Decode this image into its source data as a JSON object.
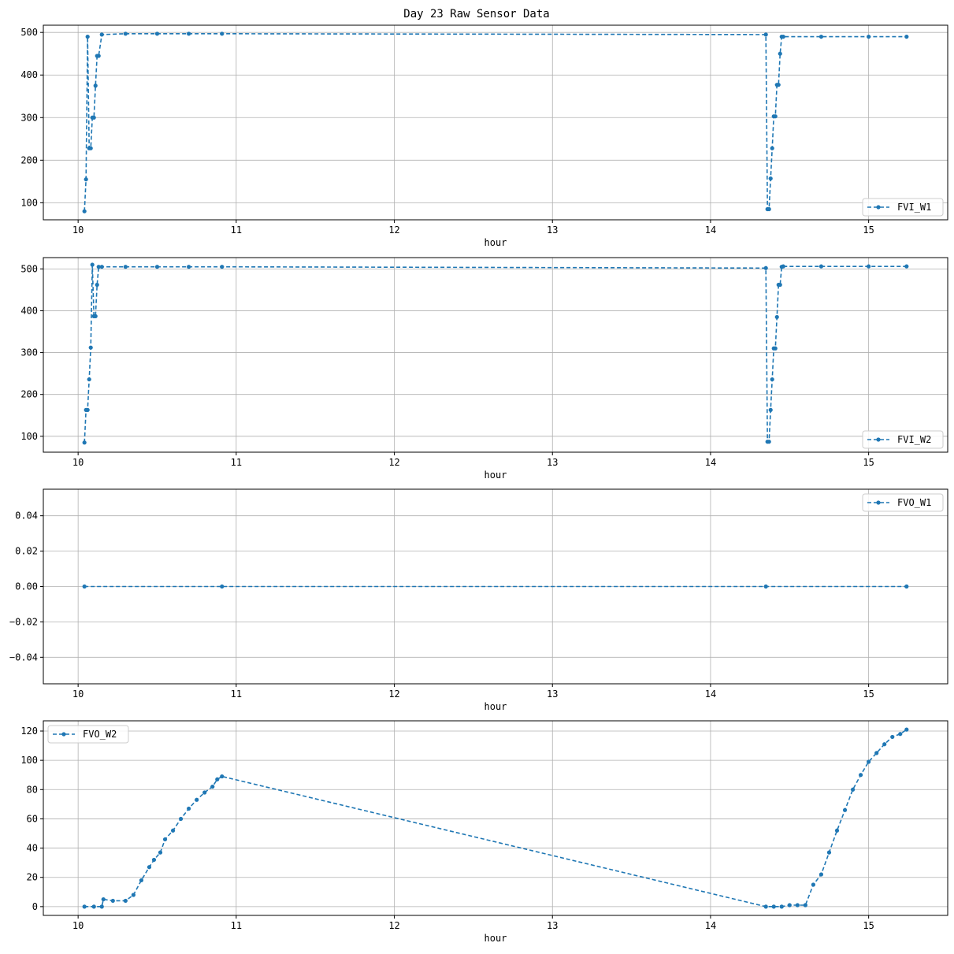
{
  "figure": {
    "title": "Day 23 Raw Sensor Data",
    "series_color": "#1f77b4",
    "grid_color": "#b0b0b0"
  },
  "chart_data": [
    {
      "type": "line",
      "series": [
        {
          "name": "FVI_W1",
          "x": [
            10.04,
            10.05,
            10.06,
            10.07,
            10.08,
            10.09,
            10.1,
            10.11,
            10.12,
            10.13,
            10.15,
            10.3,
            10.5,
            10.7,
            10.91,
            14.35,
            14.36,
            14.37,
            14.38,
            14.39,
            14.4,
            14.41,
            14.42,
            14.43,
            14.44,
            14.45,
            14.46,
            14.7,
            15.0,
            15.24
          ],
          "y": [
            80,
            155,
            490,
            228,
            228,
            300,
            300,
            375,
            445,
            445,
            495,
            497,
            497,
            497,
            497,
            495,
            85,
            85,
            157,
            228,
            303,
            303,
            377,
            377,
            450,
            490,
            490,
            490,
            490,
            490
          ]
        }
      ],
      "xlabel": "hour",
      "ylabel": "",
      "xlim": [
        9.78,
        15.5
      ],
      "ylim": [
        60,
        517
      ],
      "xticks": [
        10,
        11,
        12,
        13,
        14,
        15
      ],
      "yticks": [
        100,
        200,
        300,
        400,
        500
      ],
      "legend": "lower right",
      "grid": true
    },
    {
      "type": "line",
      "series": [
        {
          "name": "FVI_W2",
          "x": [
            10.04,
            10.05,
            10.06,
            10.07,
            10.08,
            10.09,
            10.1,
            10.11,
            10.12,
            10.13,
            10.15,
            10.3,
            10.5,
            10.7,
            10.91,
            14.35,
            14.36,
            14.37,
            14.38,
            14.39,
            14.4,
            14.41,
            14.42,
            14.43,
            14.44,
            14.45,
            14.46,
            14.7,
            15.0,
            15.24
          ],
          "y": [
            85,
            163,
            163,
            236,
            312,
            510,
            387,
            387,
            462,
            505,
            505,
            505,
            505,
            505,
            505,
            502,
            87,
            87,
            163,
            236,
            310,
            310,
            385,
            462,
            462,
            505,
            506,
            506,
            506,
            506
          ]
        }
      ],
      "xlabel": "hour",
      "ylabel": "",
      "xlim": [
        9.78,
        15.5
      ],
      "ylim": [
        62,
        527
      ],
      "xticks": [
        10,
        11,
        12,
        13,
        14,
        15
      ],
      "yticks": [
        100,
        200,
        300,
        400,
        500
      ],
      "legend": "lower right",
      "grid": true
    },
    {
      "type": "line",
      "series": [
        {
          "name": "FVO_W1",
          "x": [
            10.04,
            10.91,
            14.35,
            15.24
          ],
          "y": [
            0,
            0,
            0,
            0
          ]
        }
      ],
      "xlabel": "hour",
      "ylabel": "",
      "xlim": [
        9.78,
        15.5
      ],
      "ylim": [
        -0.055,
        0.055
      ],
      "xticks": [
        10,
        11,
        12,
        13,
        14,
        15
      ],
      "yticks": [
        -0.04,
        -0.02,
        0.0,
        0.02,
        0.04
      ],
      "ytick_labels": [
        "−0.04",
        "−0.02",
        "0.00",
        "0.02",
        "0.04"
      ],
      "legend": "upper right",
      "grid": true
    },
    {
      "type": "line",
      "series": [
        {
          "name": "FVO_W2",
          "x": [
            10.04,
            10.1,
            10.15,
            10.16,
            10.22,
            10.3,
            10.35,
            10.4,
            10.45,
            10.48,
            10.52,
            10.55,
            10.6,
            10.65,
            10.7,
            10.75,
            10.8,
            10.85,
            10.88,
            10.91,
            14.35,
            14.4,
            14.45,
            14.5,
            14.55,
            14.6,
            14.65,
            14.7,
            14.75,
            14.8,
            14.85,
            14.9,
            14.95,
            15.0,
            15.05,
            15.1,
            15.15,
            15.2,
            15.24
          ],
          "y": [
            0,
            0,
            0,
            5,
            4,
            4,
            8,
            18,
            27,
            32,
            37,
            46,
            52,
            60,
            67,
            73,
            78,
            82,
            87,
            89,
            0,
            0,
            0,
            1,
            1,
            1,
            15,
            22,
            37,
            52,
            66,
            80,
            90,
            99,
            105,
            111,
            116,
            118,
            121
          ]
        }
      ],
      "xlabel": "hour",
      "ylabel": "",
      "xlim": [
        9.78,
        15.5
      ],
      "ylim": [
        -6,
        127
      ],
      "xticks": [
        10,
        11,
        12,
        13,
        14,
        15
      ],
      "yticks": [
        0,
        20,
        40,
        60,
        80,
        100,
        120
      ],
      "legend": "upper left",
      "grid": true
    }
  ]
}
